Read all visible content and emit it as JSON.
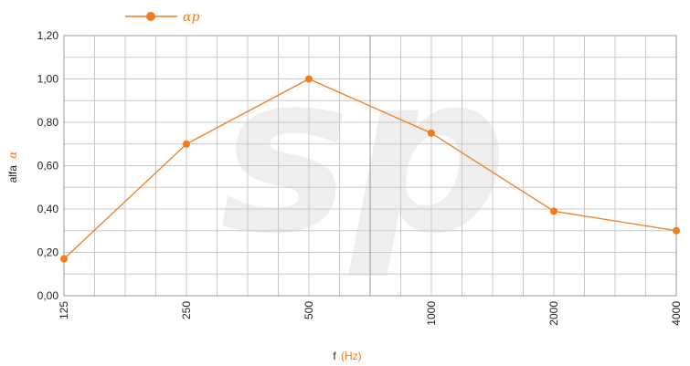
{
  "chart_data": {
    "type": "line",
    "categories": [
      "125",
      "250",
      "500",
      "1000",
      "2000",
      "4000"
    ],
    "series": [
      {
        "name": "αp",
        "values": [
          0.17,
          0.7,
          1.0,
          0.75,
          0.39,
          0.3
        ]
      }
    ],
    "ylim": [
      0.0,
      1.2
    ],
    "yticks": [
      "0,00",
      "0,20",
      "0,40",
      "0,60",
      "0,80",
      "1,00",
      "1,20"
    ],
    "ylabel": {
      "text": "alfa",
      "symbol": "α"
    },
    "xlabel": {
      "text": "f",
      "unit": "(Hz)"
    },
    "grid": true,
    "legend_position": "top-left",
    "watermark": "sp",
    "colors": {
      "series": "#f07c1e",
      "grid": "#c8c8c8",
      "grid_major": "#9a9a9a",
      "axis_text": "#231f20",
      "watermark": "#eeeeee"
    }
  }
}
